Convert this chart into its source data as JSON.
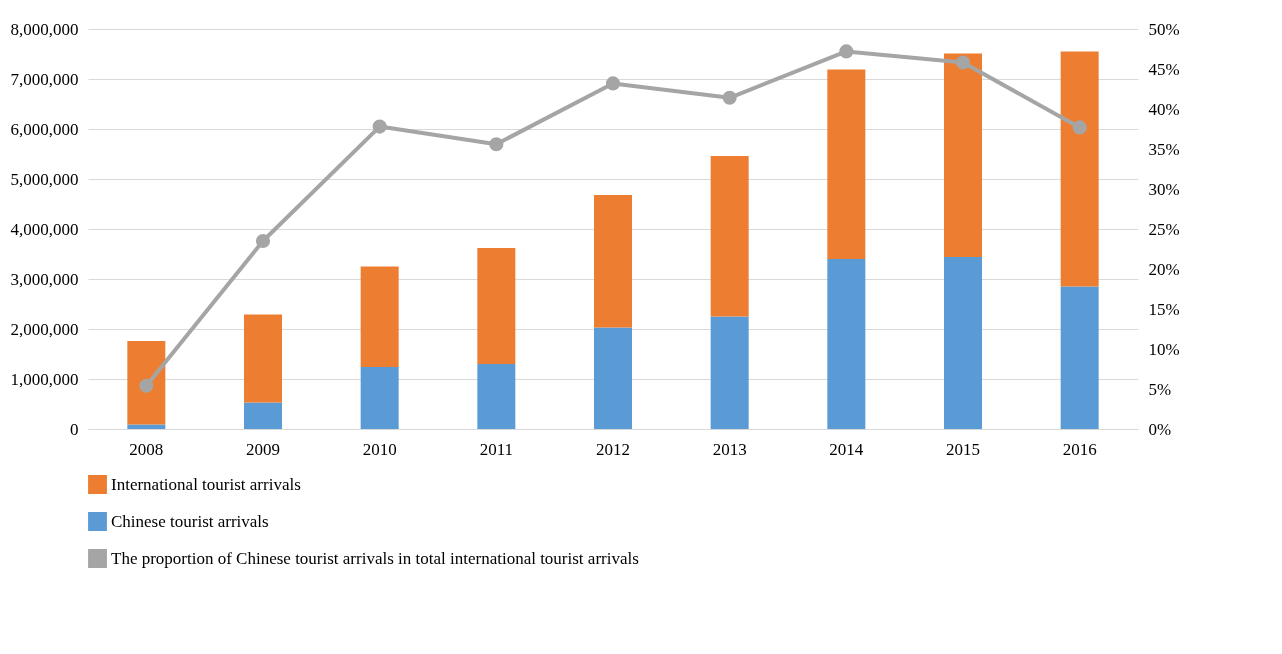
{
  "chart_data": {
    "type": "bar",
    "stacked": true,
    "categories": [
      "2008",
      "2009",
      "2010",
      "2011",
      "2012",
      "2013",
      "2014",
      "2015",
      "2016"
    ],
    "series": [
      {
        "name": "Chinese tourist arrivals",
        "color": "#5b9bd5",
        "values": [
          90000,
          530000,
          1240000,
          1300000,
          2030000,
          2250000,
          3400000,
          3440000,
          2850000
        ]
      },
      {
        "name": "International tourist arrivals",
        "color": "#ed7d31",
        "values": [
          1670000,
          1760000,
          2010000,
          2320000,
          2650000,
          3210000,
          3790000,
          4070000,
          4700000
        ]
      },
      {
        "name": "The proportion of Chinese tourist arrivals in total international tourist arrivals",
        "type": "line",
        "axis": "y2",
        "color": "#a5a5a5",
        "marker": "circle",
        "values": [
          5.4,
          23.5,
          37.8,
          35.6,
          43.2,
          41.4,
          47.2,
          45.8,
          37.7
        ]
      }
    ],
    "ylim": [
      0,
      8000000
    ],
    "yticks": [
      0,
      {
        "value": 1000000,
        "label": "1,000,000"
      },
      {
        "value": 2000000,
        "label": "2,000,000"
      },
      {
        "value": 3000000,
        "label": "3,000,000"
      },
      {
        "value": 4000000,
        "label": "4,000,000"
      },
      {
        "value": 5000000,
        "label": "5,000,000"
      },
      {
        "value": 6000000,
        "label": "6,000,000"
      },
      {
        "value": 7000000,
        "label": "7,000,000"
      },
      {
        "value": 8000000,
        "label": "8,000,000"
      }
    ],
    "y2lim": [
      0,
      50
    ],
    "y2ticks": [
      {
        "value": 0,
        "label": "0%"
      },
      {
        "value": 5,
        "label": "5%"
      },
      {
        "value": 10,
        "label": "10%"
      },
      {
        "value": 15,
        "label": "15%"
      },
      {
        "value": 20,
        "label": "20%"
      },
      {
        "value": 25,
        "label": "25%"
      },
      {
        "value": 30,
        "label": "30%"
      },
      {
        "value": 35,
        "label": "35%"
      },
      {
        "value": 40,
        "label": "40%"
      },
      {
        "value": 45,
        "label": "45%"
      },
      {
        "value": 50,
        "label": "50%"
      }
    ],
    "grid": "y",
    "legend": "bottom"
  }
}
